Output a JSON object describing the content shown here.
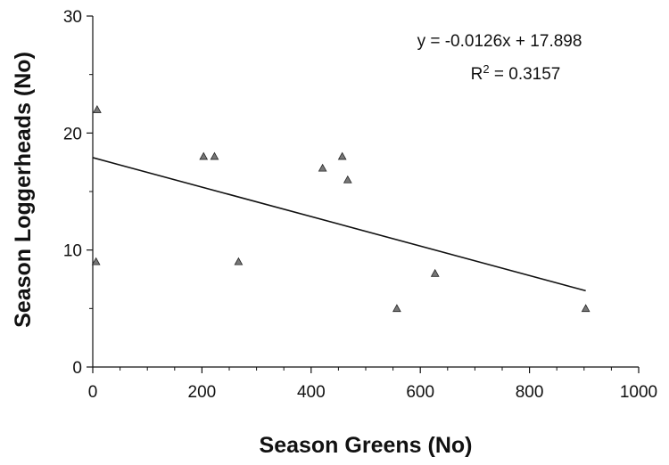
{
  "chart_data": {
    "type": "scatter",
    "xlabel": "Season Greens (No)",
    "ylabel": "Season Loggerheads (No)",
    "xlim": [
      0,
      1000
    ],
    "ylim": [
      0,
      30
    ],
    "x_ticks": [
      0,
      200,
      400,
      600,
      800,
      1000
    ],
    "y_ticks": [
      0,
      10,
      20,
      30
    ],
    "x_tick_labels": [
      "0",
      "200",
      "400",
      "600",
      "800",
      "1000"
    ],
    "y_tick_labels": [
      "0",
      "10",
      "20",
      "30"
    ],
    "grid": false,
    "marker": "triangle",
    "marker_color": "#777777",
    "points": [
      {
        "x": 8,
        "y": 22
      },
      {
        "x": 6,
        "y": 9
      },
      {
        "x": 203,
        "y": 18
      },
      {
        "x": 223,
        "y": 18
      },
      {
        "x": 267,
        "y": 9
      },
      {
        "x": 421,
        "y": 17
      },
      {
        "x": 457,
        "y": 18
      },
      {
        "x": 467,
        "y": 16
      },
      {
        "x": 557,
        "y": 5
      },
      {
        "x": 627,
        "y": 8
      },
      {
        "x": 903,
        "y": 5
      }
    ],
    "trendline": {
      "type": "linear",
      "slope": -0.0126,
      "intercept": 17.898,
      "x_range": [
        0,
        903
      ],
      "equation_text": "y = -0.0126x + 17.898",
      "r2_prefix": "R",
      "r2_sup": "2",
      "r2_value": " = 0.3157"
    }
  }
}
